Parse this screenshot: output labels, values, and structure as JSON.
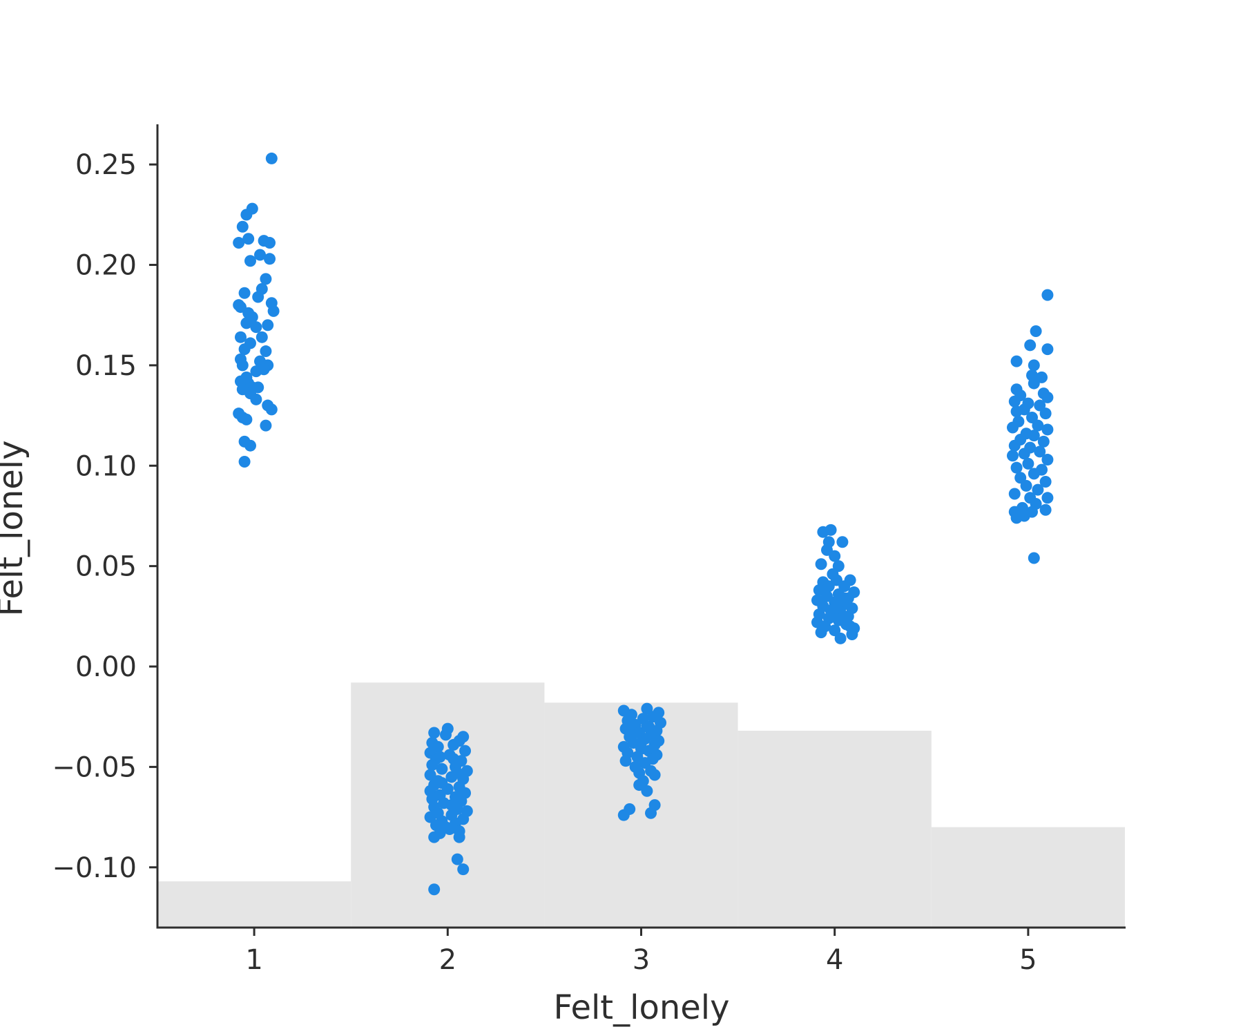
{
  "chart_data": {
    "type": "scatter",
    "xlabel": "Felt_lonely",
    "ylabel": "Felt_lonely",
    "xlim": [
      0.5,
      5.5
    ],
    "ylim": [
      -0.13,
      0.27
    ],
    "x_ticks": [
      "1",
      "2",
      "3",
      "4",
      "5"
    ],
    "y_ticks": [
      "0.25",
      "0.20",
      "0.15",
      "0.10",
      "0.05",
      "0.00",
      "−0.05",
      "−0.10"
    ],
    "y_tick_values": [
      0.25,
      0.2,
      0.15,
      0.1,
      0.05,
      0.0,
      -0.05,
      -0.1
    ],
    "grid": false,
    "legend": "none",
    "point_color": "#1e88e5",
    "background_histogram": {
      "color": "#e5e5e5",
      "bins": [
        {
          "x": 1,
          "top": -0.107
        },
        {
          "x": 2,
          "top": -0.008
        },
        {
          "x": 3,
          "top": -0.018
        },
        {
          "x": 4,
          "top": -0.032
        },
        {
          "x": 5,
          "top": -0.08
        }
      ]
    },
    "series": [
      {
        "category": 1,
        "points": [
          [
            0.92,
            0.211
          ],
          [
            0.94,
            0.219
          ],
          [
            0.96,
            0.225
          ],
          [
            0.99,
            0.228
          ],
          [
            0.97,
            0.213
          ],
          [
            1.05,
            0.212
          ],
          [
            1.08,
            0.203
          ],
          [
            1.03,
            0.205
          ],
          [
            0.98,
            0.202
          ],
          [
            1.06,
            0.193
          ],
          [
            1.04,
            0.188
          ],
          [
            1.09,
            0.181
          ],
          [
            0.95,
            0.186
          ],
          [
            0.93,
            0.179
          ],
          [
            1.02,
            0.184
          ],
          [
            0.97,
            0.176
          ],
          [
            1.1,
            0.177
          ],
          [
            0.99,
            0.174
          ],
          [
            1.01,
            0.169
          ],
          [
            1.07,
            0.17
          ],
          [
            0.96,
            0.171
          ],
          [
            0.93,
            0.164
          ],
          [
            0.98,
            0.161
          ],
          [
            1.06,
            0.157
          ],
          [
            0.95,
            0.158
          ],
          [
            0.93,
            0.153
          ],
          [
            1.03,
            0.152
          ],
          [
            1.07,
            0.15
          ],
          [
            1.01,
            0.147
          ],
          [
            0.94,
            0.15
          ],
          [
            1.05,
            0.148
          ],
          [
            0.93,
            0.142
          ],
          [
            0.97,
            0.141
          ],
          [
            0.99,
            0.139
          ],
          [
            1.02,
            0.139
          ],
          [
            0.94,
            0.138
          ],
          [
            0.98,
            0.136
          ],
          [
            1.01,
            0.133
          ],
          [
            1.07,
            0.13
          ],
          [
            1.09,
            0.128
          ],
          [
            0.92,
            0.126
          ],
          [
            0.94,
            0.124
          ],
          [
            0.96,
            0.123
          ],
          [
            1.06,
            0.12
          ],
          [
            0.95,
            0.112
          ],
          [
            0.98,
            0.11
          ],
          [
            0.95,
            0.102
          ],
          [
            1.09,
            0.253
          ],
          [
            1.08,
            0.211
          ],
          [
            0.92,
            0.18
          ],
          [
            1.04,
            0.164
          ],
          [
            0.96,
            0.144
          ]
        ]
      },
      {
        "category": 2,
        "points": [
          [
            2.0,
            -0.031
          ],
          [
            1.93,
            -0.033
          ],
          [
            2.08,
            -0.035
          ],
          [
            1.92,
            -0.038
          ],
          [
            2.06,
            -0.037
          ],
          [
            1.95,
            -0.04
          ],
          [
            2.03,
            -0.039
          ],
          [
            1.91,
            -0.043
          ],
          [
            2.09,
            -0.042
          ],
          [
            2.01,
            -0.044
          ],
          [
            1.94,
            -0.046
          ],
          [
            2.07,
            -0.047
          ],
          [
            1.92,
            -0.049
          ],
          [
            2.04,
            -0.05
          ],
          [
            1.97,
            -0.051
          ],
          [
            2.1,
            -0.052
          ],
          [
            1.91,
            -0.054
          ],
          [
            2.02,
            -0.055
          ],
          [
            2.08,
            -0.056
          ],
          [
            1.95,
            -0.057
          ],
          [
            1.93,
            -0.059
          ],
          [
            2.06,
            -0.06
          ],
          [
            2.0,
            -0.061
          ],
          [
            1.91,
            -0.062
          ],
          [
            2.09,
            -0.063
          ],
          [
            1.96,
            -0.064
          ],
          [
            2.04,
            -0.065
          ],
          [
            1.92,
            -0.066
          ],
          [
            2.07,
            -0.067
          ],
          [
            1.98,
            -0.068
          ],
          [
            1.93,
            -0.07
          ],
          [
            2.05,
            -0.071
          ],
          [
            2.1,
            -0.072
          ],
          [
            1.95,
            -0.073
          ],
          [
            2.02,
            -0.074
          ],
          [
            1.91,
            -0.075
          ],
          [
            2.08,
            -0.076
          ],
          [
            1.97,
            -0.077
          ],
          [
            2.04,
            -0.078
          ],
          [
            1.94,
            -0.079
          ],
          [
            2.01,
            -0.081
          ],
          [
            2.06,
            -0.082
          ],
          [
            1.96,
            -0.083
          ],
          [
            1.93,
            -0.085
          ],
          [
            2.06,
            -0.085
          ],
          [
            2.05,
            -0.096
          ],
          [
            2.08,
            -0.101
          ],
          [
            1.93,
            -0.111
          ],
          [
            1.99,
            -0.034
          ],
          [
            2.03,
            -0.046
          ],
          [
            1.97,
            -0.058
          ],
          [
            2.02,
            -0.069
          ],
          [
            1.99,
            -0.08
          ],
          [
            2.05,
            -0.053
          ],
          [
            1.96,
            -0.045
          ]
        ]
      },
      {
        "category": 3,
        "points": [
          [
            2.91,
            -0.022
          ],
          [
            3.03,
            -0.021
          ],
          [
            3.09,
            -0.023
          ],
          [
            2.95,
            -0.024
          ],
          [
            3.06,
            -0.025
          ],
          [
            2.93,
            -0.027
          ],
          [
            3.01,
            -0.026
          ],
          [
            3.1,
            -0.028
          ],
          [
            2.97,
            -0.029
          ],
          [
            3.04,
            -0.03
          ],
          [
            2.92,
            -0.031
          ],
          [
            3.08,
            -0.032
          ],
          [
            2.99,
            -0.033
          ],
          [
            3.05,
            -0.034
          ],
          [
            2.94,
            -0.035
          ],
          [
            3.02,
            -0.036
          ],
          [
            3.09,
            -0.037
          ],
          [
            2.96,
            -0.038
          ],
          [
            3.07,
            -0.039
          ],
          [
            2.91,
            -0.04
          ],
          [
            3.0,
            -0.041
          ],
          [
            3.04,
            -0.042
          ],
          [
            2.93,
            -0.043
          ],
          [
            3.08,
            -0.044
          ],
          [
            2.98,
            -0.045
          ],
          [
            3.06,
            -0.046
          ],
          [
            2.92,
            -0.047
          ],
          [
            3.02,
            -0.048
          ],
          [
            2.97,
            -0.05
          ],
          [
            3.05,
            -0.052
          ],
          [
            2.99,
            -0.053
          ],
          [
            3.07,
            -0.054
          ],
          [
            3.01,
            -0.057
          ],
          [
            2.99,
            -0.059
          ],
          [
            3.03,
            -0.062
          ],
          [
            2.91,
            -0.074
          ],
          [
            2.94,
            -0.071
          ],
          [
            3.05,
            -0.073
          ],
          [
            3.07,
            -0.069
          ],
          [
            3.03,
            -0.03
          ],
          [
            2.95,
            -0.034
          ],
          [
            3.0,
            -0.038
          ]
        ]
      },
      {
        "category": 4,
        "points": [
          [
            3.94,
            0.067
          ],
          [
            3.98,
            0.068
          ],
          [
            3.97,
            0.062
          ],
          [
            4.04,
            0.062
          ],
          [
            3.96,
            0.058
          ],
          [
            4.0,
            0.055
          ],
          [
            3.93,
            0.051
          ],
          [
            4.02,
            0.05
          ],
          [
            3.99,
            0.046
          ],
          [
            4.01,
            0.043
          ],
          [
            4.08,
            0.043
          ],
          [
            3.94,
            0.042
          ],
          [
            3.97,
            0.04
          ],
          [
            4.05,
            0.04
          ],
          [
            3.92,
            0.038
          ],
          [
            4.1,
            0.037
          ],
          [
            4.02,
            0.036
          ],
          [
            3.96,
            0.035
          ],
          [
            4.07,
            0.034
          ],
          [
            3.91,
            0.033
          ],
          [
            4.0,
            0.032
          ],
          [
            4.05,
            0.031
          ],
          [
            3.94,
            0.03
          ],
          [
            4.09,
            0.029
          ],
          [
            3.98,
            0.028
          ],
          [
            4.03,
            0.027
          ],
          [
            3.92,
            0.026
          ],
          [
            4.07,
            0.025
          ],
          [
            3.97,
            0.024
          ],
          [
            4.02,
            0.023
          ],
          [
            3.91,
            0.022
          ],
          [
            4.06,
            0.021
          ],
          [
            3.95,
            0.02
          ],
          [
            4.1,
            0.019
          ],
          [
            4.0,
            0.018
          ],
          [
            3.93,
            0.017
          ],
          [
            4.09,
            0.016
          ],
          [
            4.03,
            0.014
          ],
          [
            4.05,
            0.034
          ],
          [
            3.99,
            0.025
          ],
          [
            4.08,
            0.02
          ],
          [
            3.95,
            0.038
          ],
          [
            4.01,
            0.029
          ]
        ]
      },
      {
        "category": 5,
        "points": [
          [
            5.1,
            0.185
          ],
          [
            5.04,
            0.167
          ],
          [
            5.01,
            0.16
          ],
          [
            5.1,
            0.158
          ],
          [
            4.94,
            0.152
          ],
          [
            5.03,
            0.15
          ],
          [
            5.02,
            0.145
          ],
          [
            5.07,
            0.144
          ],
          [
            5.03,
            0.141
          ],
          [
            4.94,
            0.138
          ],
          [
            5.08,
            0.136
          ],
          [
            4.96,
            0.135
          ],
          [
            5.1,
            0.134
          ],
          [
            4.93,
            0.132
          ],
          [
            5.0,
            0.131
          ],
          [
            5.06,
            0.13
          ],
          [
            4.98,
            0.128
          ],
          [
            4.94,
            0.127
          ],
          [
            5.09,
            0.126
          ],
          [
            5.02,
            0.124
          ],
          [
            4.95,
            0.122
          ],
          [
            5.05,
            0.12
          ],
          [
            4.92,
            0.119
          ],
          [
            5.1,
            0.118
          ],
          [
            4.99,
            0.116
          ],
          [
            5.03,
            0.115
          ],
          [
            4.96,
            0.113
          ],
          [
            5.08,
            0.112
          ],
          [
            4.93,
            0.11
          ],
          [
            5.01,
            0.109
          ],
          [
            5.06,
            0.107
          ],
          [
            4.98,
            0.106
          ],
          [
            4.92,
            0.105
          ],
          [
            5.1,
            0.103
          ],
          [
            5.0,
            0.101
          ],
          [
            4.94,
            0.099
          ],
          [
            5.07,
            0.098
          ],
          [
            5.03,
            0.096
          ],
          [
            4.96,
            0.094
          ],
          [
            5.09,
            0.092
          ],
          [
            4.99,
            0.09
          ],
          [
            5.05,
            0.088
          ],
          [
            4.93,
            0.086
          ],
          [
            5.01,
            0.084
          ],
          [
            5.1,
            0.084
          ],
          [
            5.04,
            0.081
          ],
          [
            4.97,
            0.079
          ],
          [
            4.93,
            0.077
          ],
          [
            5.09,
            0.078
          ],
          [
            5.02,
            0.077
          ],
          [
            4.94,
            0.074
          ],
          [
            4.98,
            0.075
          ],
          [
            5.03,
            0.054
          ]
        ]
      }
    ]
  }
}
